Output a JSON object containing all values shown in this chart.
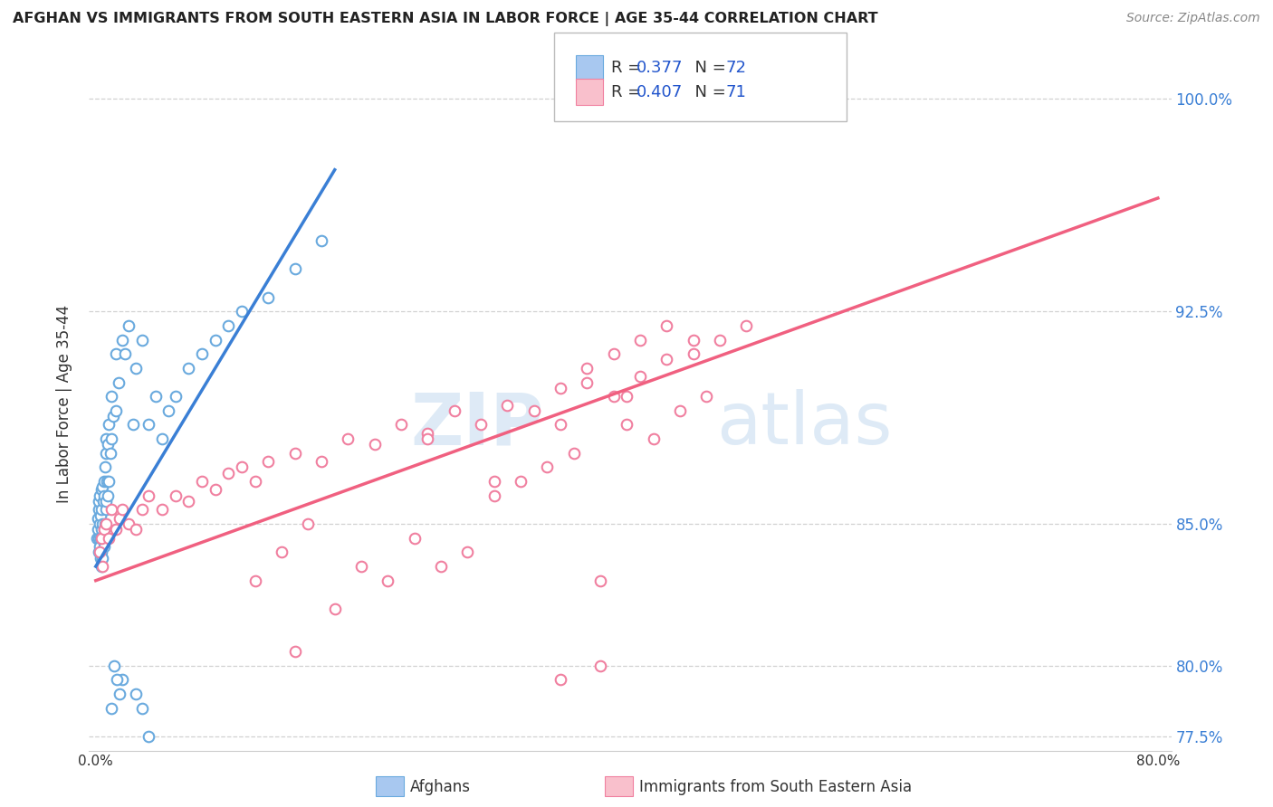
{
  "title": "AFGHAN VS IMMIGRANTS FROM SOUTH EASTERN ASIA IN LABOR FORCE | AGE 35-44 CORRELATION CHART",
  "source": "Source: ZipAtlas.com",
  "ylabel": "In Labor Force | Age 35-44",
  "legend_r1": "R = 0.377",
  "legend_n1": "N = 72",
  "legend_r2": "R = 0.407",
  "legend_n2": "N = 71",
  "watermark_zip": "ZIP",
  "watermark_atlas": "atlas",
  "blue_color": "#a8c8f0",
  "blue_edge_color": "#6aaade",
  "pink_color": "#f9c0cc",
  "pink_edge_color": "#f080a0",
  "blue_line_color": "#3a7fd5",
  "pink_line_color": "#f06080",
  "legend_r_color": "#2255cc",
  "legend_n_color": "#111111",
  "ytick_color": "#3a7fd5",
  "grid_color": "#cccccc",
  "background_color": "#ffffff",
  "xlim_min": -0.5,
  "xlim_max": 81.0,
  "ylim_min": 77.0,
  "ylim_max": 101.5,
  "ytick_vals": [
    77.5,
    80.0,
    85.0,
    92.5,
    100.0
  ],
  "ytick_labels": [
    "77.5%",
    "80.0%",
    "85.0%",
    "92.5%",
    "100.0%"
  ],
  "blue_x": [
    0.1,
    0.15,
    0.15,
    0.2,
    0.2,
    0.25,
    0.25,
    0.3,
    0.3,
    0.3,
    0.35,
    0.35,
    0.35,
    0.4,
    0.4,
    0.4,
    0.45,
    0.45,
    0.5,
    0.5,
    0.5,
    0.55,
    0.55,
    0.6,
    0.6,
    0.65,
    0.65,
    0.7,
    0.7,
    0.75,
    0.75,
    0.8,
    0.8,
    0.85,
    0.9,
    0.9,
    1.0,
    1.0,
    1.1,
    1.2,
    1.2,
    1.3,
    1.5,
    1.5,
    1.7,
    2.0,
    2.2,
    2.5,
    2.8,
    3.0,
    3.5,
    4.0,
    4.5,
    5.0,
    5.5,
    6.0,
    7.0,
    8.0,
    9.0,
    10.0,
    11.0,
    13.0,
    15.0,
    17.0,
    4.0,
    3.5,
    3.0,
    2.0,
    1.8,
    1.6,
    1.4,
    1.2
  ],
  "blue_y": [
    84.5,
    84.8,
    85.2,
    84.5,
    85.5,
    84.0,
    85.8,
    84.2,
    85.0,
    86.0,
    83.8,
    84.5,
    85.3,
    83.5,
    84.8,
    86.2,
    84.0,
    85.5,
    83.8,
    85.0,
    86.3,
    84.5,
    85.8,
    84.2,
    86.0,
    84.8,
    86.5,
    85.0,
    87.0,
    85.5,
    87.5,
    85.8,
    88.0,
    86.5,
    86.0,
    87.8,
    86.5,
    88.5,
    87.5,
    88.0,
    89.5,
    88.8,
    89.0,
    91.0,
    90.0,
    91.5,
    91.0,
    92.0,
    88.5,
    90.5,
    91.5,
    88.5,
    89.5,
    88.0,
    89.0,
    89.5,
    90.5,
    91.0,
    91.5,
    92.0,
    92.5,
    93.0,
    94.0,
    95.0,
    77.5,
    78.5,
    79.0,
    79.5,
    79.0,
    79.5,
    80.0,
    78.5
  ],
  "pink_x": [
    0.3,
    0.4,
    0.5,
    0.6,
    0.8,
    1.0,
    1.2,
    1.5,
    1.8,
    2.0,
    2.5,
    3.0,
    3.5,
    4.0,
    5.0,
    6.0,
    7.0,
    8.0,
    9.0,
    10.0,
    11.0,
    12.0,
    13.0,
    15.0,
    17.0,
    19.0,
    21.0,
    23.0,
    25.0,
    27.0,
    29.0,
    31.0,
    33.0,
    35.0,
    37.0,
    39.0,
    41.0,
    43.0,
    45.0,
    47.0,
    49.0,
    26.0,
    28.0,
    15.0,
    18.0,
    22.0,
    32.0,
    36.0,
    40.0,
    38.0,
    20.0,
    24.0,
    30.0,
    34.0,
    42.0,
    44.0,
    46.0,
    12.0,
    14.0,
    16.0,
    25.0,
    30.0,
    35.0,
    40.0,
    45.0,
    37.0,
    39.0,
    41.0,
    43.0,
    35.0,
    38.0
  ],
  "pink_y": [
    84.0,
    84.5,
    83.5,
    84.8,
    85.0,
    84.5,
    85.5,
    84.8,
    85.2,
    85.5,
    85.0,
    84.8,
    85.5,
    86.0,
    85.5,
    86.0,
    85.8,
    86.5,
    86.2,
    86.8,
    87.0,
    86.5,
    87.2,
    87.5,
    87.2,
    88.0,
    87.8,
    88.5,
    88.2,
    89.0,
    88.5,
    89.2,
    89.0,
    89.8,
    90.0,
    89.5,
    90.2,
    90.8,
    91.0,
    91.5,
    92.0,
    83.5,
    84.0,
    80.5,
    82.0,
    83.0,
    86.5,
    87.5,
    88.5,
    83.0,
    83.5,
    84.5,
    86.0,
    87.0,
    88.0,
    89.0,
    89.5,
    83.0,
    84.0,
    85.0,
    88.0,
    86.5,
    88.5,
    89.5,
    91.5,
    90.5,
    91.0,
    91.5,
    92.0,
    79.5,
    80.0
  ],
  "blue_trendline_x": [
    0.0,
    18.0
  ],
  "blue_trendline_y": [
    83.5,
    97.5
  ],
  "pink_trendline_x": [
    0.0,
    80.0
  ],
  "pink_trendline_y": [
    83.0,
    96.5
  ]
}
